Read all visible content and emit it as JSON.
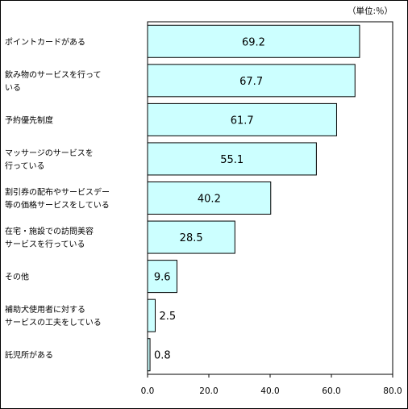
{
  "chart_data": {
    "type": "bar",
    "orientation": "horizontal",
    "unit_label": "（単位:％）",
    "categories": [
      [
        "ポイントカードがある"
      ],
      [
        "飲み物のサービスを行って",
        "いる"
      ],
      [
        "予約優先制度"
      ],
      [
        "マッサージのサービスを",
        "行っている"
      ],
      [
        "割引券の配布やサービスデー",
        "等の価格サービスをしている"
      ],
      [
        "在宅・施設での訪問美容",
        "サービスを行っている"
      ],
      [
        "その他"
      ],
      [
        "補助犬使用者に対する",
        "サービスの工夫をしている"
      ],
      [
        "託児所がある"
      ]
    ],
    "values": [
      69.2,
      67.7,
      61.7,
      55.1,
      40.2,
      28.5,
      9.6,
      2.5,
      0.8
    ],
    "value_labels": [
      "69.2",
      "67.7",
      "61.7",
      "55.1",
      "40.2",
      "28.5",
      "9.6",
      "2.5",
      "0.8"
    ],
    "xlim": [
      0,
      80
    ],
    "ticks": [
      0,
      20,
      40,
      60,
      80
    ],
    "tick_labels": [
      "0.0",
      "20.0",
      "40.0",
      "60.0",
      "80.0"
    ],
    "grid": false,
    "bar_color": "#CCFFFF",
    "bar_border_color": "#000000",
    "title": "",
    "xlabel": "",
    "ylabel": ""
  }
}
